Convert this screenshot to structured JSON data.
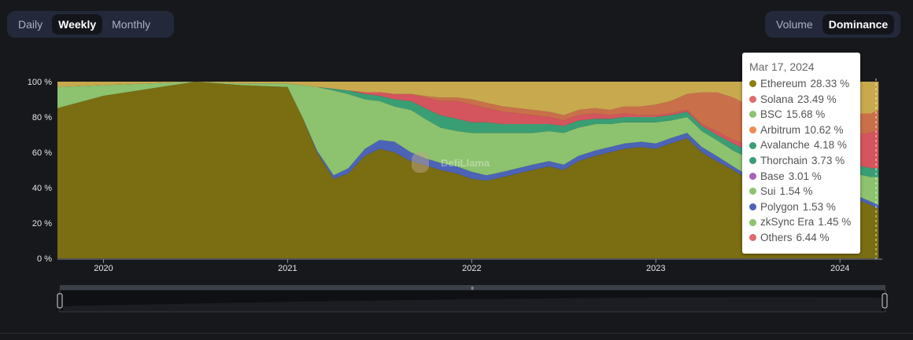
{
  "period_tabs": [
    {
      "label": "Daily",
      "active": false
    },
    {
      "label": "Weekly",
      "active": true
    },
    {
      "label": "Monthly",
      "active": false
    }
  ],
  "metric_tabs": [
    {
      "label": "Volume",
      "active": false
    },
    {
      "label": "Dominance",
      "active": true
    }
  ],
  "watermark": "DefiLlama",
  "tooltip": {
    "date": "Mar 17, 2024",
    "items": [
      {
        "name": "Ethereum",
        "value": "28.33 %",
        "color": "#8b7d0e"
      },
      {
        "name": "Solana",
        "value": "23.49 %",
        "color": "#e06a6e"
      },
      {
        "name": "BSC",
        "value": "15.68 %",
        "color": "#8dc26f"
      },
      {
        "name": "Arbitrum",
        "value": "10.62 %",
        "color": "#f08a55"
      },
      {
        "name": "Avalanche",
        "value": "4.18 %",
        "color": "#3a9e74"
      },
      {
        "name": "Thorchain",
        "value": "3.73 %",
        "color": "#3a9e74"
      },
      {
        "name": "Base",
        "value": "3.01 %",
        "color": "#a564b8"
      },
      {
        "name": "Sui",
        "value": "1.54 %",
        "color": "#8dc26f"
      },
      {
        "name": "Polygon",
        "value": "1.53 %",
        "color": "#4c63b6"
      },
      {
        "name": "zkSync Era",
        "value": "1.45 %",
        "color": "#8dc26f"
      },
      {
        "name": "Others",
        "value": "6.44 %",
        "color": "#e06a6e"
      }
    ]
  },
  "chart_data": {
    "type": "area",
    "stacked": true,
    "normalized": true,
    "y_tick_labels": [
      "0 %",
      "20 %",
      "40 %",
      "60 %",
      "80 %",
      "100 %"
    ],
    "ylim": [
      0,
      100
    ],
    "x_tick_labels": [
      "2020",
      "2021",
      "2022",
      "2023",
      "2024"
    ],
    "x": [
      2019.75,
      2020.0,
      2020.25,
      2020.5,
      2020.75,
      2021.0,
      2021.08,
      2021.16,
      2021.25,
      2021.33,
      2021.42,
      2021.5,
      2021.58,
      2021.67,
      2021.75,
      2021.83,
      2021.92,
      2022.0,
      2022.08,
      2022.17,
      2022.25,
      2022.33,
      2022.42,
      2022.5,
      2022.58,
      2022.67,
      2022.75,
      2022.83,
      2022.92,
      2023.0,
      2023.08,
      2023.17,
      2023.25,
      2023.33,
      2023.42,
      2023.5,
      2023.58,
      2023.67,
      2023.75,
      2023.83,
      2023.92,
      2024.0,
      2024.08,
      2024.17,
      2024.21
    ],
    "series": [
      {
        "name": "Ethereum",
        "color": "#7a6d12",
        "values": [
          85,
          92,
          96,
          100,
          98,
          97,
          80,
          60,
          45,
          48,
          58,
          62,
          60,
          55,
          52,
          50,
          48,
          45,
          44,
          46,
          48,
          50,
          52,
          50,
          55,
          58,
          60,
          62,
          63,
          62,
          65,
          68,
          60,
          55,
          50,
          45,
          42,
          45,
          50,
          48,
          40,
          38,
          34,
          30,
          28
        ]
      },
      {
        "name": "Polygon",
        "color": "#4c63b6",
        "values": [
          0,
          0,
          0,
          0,
          0,
          0,
          0,
          1,
          2,
          3,
          4,
          5,
          6,
          5,
          4,
          4,
          4,
          4,
          3,
          3,
          3,
          3,
          3,
          3,
          3,
          3,
          3,
          3,
          3,
          3,
          3,
          3,
          3,
          3,
          2,
          2,
          2,
          2,
          2,
          2,
          2,
          2,
          2,
          2,
          2
        ]
      },
      {
        "name": "BSC",
        "color": "#8dc26f",
        "values": [
          12,
          6,
          3,
          0,
          1,
          2,
          18,
          36,
          48,
          42,
          28,
          22,
          20,
          24,
          22,
          20,
          20,
          22,
          24,
          22,
          20,
          18,
          17,
          18,
          16,
          15,
          13,
          12,
          11,
          12,
          10,
          9,
          9,
          9,
          9,
          10,
          10,
          9,
          10,
          10,
          9,
          10,
          12,
          14,
          16
        ]
      },
      {
        "name": "Avalanche",
        "color": "#3a9e74",
        "values": [
          0,
          0,
          0,
          0,
          0,
          0,
          0,
          0,
          1,
          2,
          3,
          3,
          4,
          5,
          6,
          7,
          7,
          6,
          6,
          5,
          5,
          5,
          4,
          4,
          4,
          3,
          3,
          3,
          3,
          3,
          3,
          3,
          3,
          3,
          4,
          4,
          5,
          5,
          5,
          5,
          5,
          5,
          5,
          5,
          5
        ]
      },
      {
        "name": "Solana",
        "color": "#d4555e",
        "values": [
          0,
          0,
          0,
          0,
          0,
          0,
          0,
          0,
          0,
          0,
          1,
          2,
          3,
          4,
          6,
          8,
          10,
          10,
          8,
          7,
          6,
          5,
          4,
          3,
          3,
          3,
          2,
          2,
          1,
          1,
          1,
          1,
          1,
          2,
          2,
          3,
          4,
          5,
          6,
          8,
          12,
          14,
          17,
          20,
          22
        ]
      },
      {
        "name": "Arbitrum",
        "color": "#c9704a",
        "values": [
          0,
          0,
          0,
          0,
          0,
          0,
          0,
          0,
          0,
          0,
          0,
          0,
          0,
          0,
          1,
          2,
          2,
          3,
          3,
          3,
          3,
          3,
          3,
          3,
          3,
          3,
          3,
          4,
          5,
          6,
          7,
          9,
          18,
          22,
          24,
          23,
          22,
          20,
          18,
          17,
          15,
          13,
          12,
          11,
          11
        ]
      },
      {
        "name": "Others",
        "color": "#c9a94e",
        "values": [
          3,
          2,
          1,
          0,
          1,
          1,
          2,
          3,
          4,
          5,
          6,
          6,
          7,
          7,
          8,
          9,
          9,
          10,
          12,
          14,
          15,
          16,
          17,
          19,
          16,
          15,
          16,
          14,
          14,
          13,
          11,
          7,
          6,
          6,
          9,
          13,
          15,
          14,
          9,
          10,
          17,
          18,
          18,
          18,
          16
        ]
      }
    ]
  }
}
